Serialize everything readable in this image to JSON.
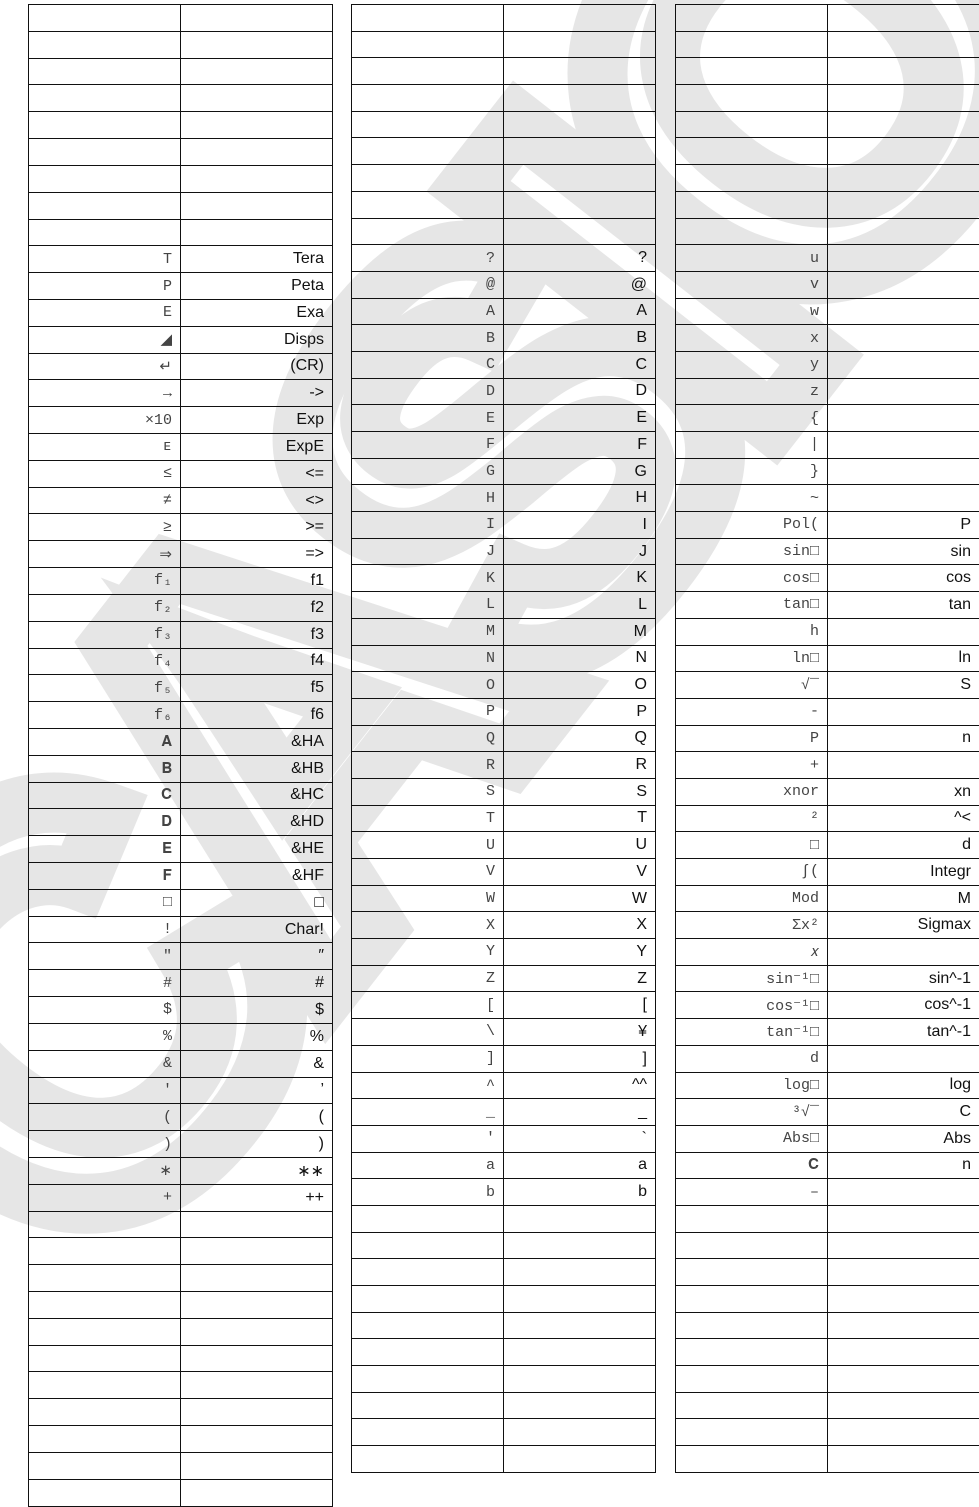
{
  "watermark": "CASIO",
  "tables": [
    {
      "total_rows": 56,
      "first_data_row": 9,
      "rows": [
        [
          "T",
          "Tera"
        ],
        [
          "P",
          "Peta"
        ],
        [
          "E",
          "Exa"
        ],
        [
          "◢",
          "Disps"
        ],
        [
          "↵",
          "(CR)"
        ],
        [
          "→",
          "->"
        ],
        [
          "×10",
          "Exp"
        ],
        [
          "ᴇ",
          "ExpE"
        ],
        [
          "≤",
          "<="
        ],
        [
          "≠",
          "<>"
        ],
        [
          "≥",
          ">="
        ],
        [
          "⇒",
          "=>"
        ],
        [
          "f₁",
          "f1"
        ],
        [
          "f₂",
          "f2"
        ],
        [
          "f₃",
          "f3"
        ],
        [
          "f₄",
          "f4"
        ],
        [
          "f₅",
          "f5"
        ],
        [
          "f₆",
          "f6"
        ],
        [
          "𝐀",
          "&HA"
        ],
        [
          "𝐁",
          "&HB"
        ],
        [
          "𝐂",
          "&HC"
        ],
        [
          "𝐃",
          "&HD"
        ],
        [
          "𝐄",
          "&HE"
        ],
        [
          "𝐅",
          "&HF"
        ],
        [
          "□",
          "□"
        ],
        [
          "!",
          "Char!"
        ],
        [
          "\"",
          "″"
        ],
        [
          "#",
          "#"
        ],
        [
          "$",
          "$"
        ],
        [
          "%",
          "%"
        ],
        [
          "&",
          "&"
        ],
        [
          "'",
          "’"
        ],
        [
          "(",
          "("
        ],
        [
          ")",
          ")"
        ],
        [
          "∗",
          "∗∗"
        ],
        [
          "+",
          "++"
        ]
      ]
    },
    {
      "total_rows": 55,
      "first_data_row": 9,
      "rows": [
        [
          "?",
          "?"
        ],
        [
          "@",
          "@"
        ],
        [
          "A",
          "A"
        ],
        [
          "B",
          "B"
        ],
        [
          "C",
          "C"
        ],
        [
          "D",
          "D"
        ],
        [
          "E",
          "E"
        ],
        [
          "F",
          "F"
        ],
        [
          "G",
          "G"
        ],
        [
          "H",
          "H"
        ],
        [
          "I",
          "I"
        ],
        [
          "J",
          "J"
        ],
        [
          "K",
          "K"
        ],
        [
          "L",
          "L"
        ],
        [
          "M",
          "M"
        ],
        [
          "N",
          "N"
        ],
        [
          "O",
          "O"
        ],
        [
          "P",
          "P"
        ],
        [
          "Q",
          "Q"
        ],
        [
          "R",
          "R"
        ],
        [
          "S",
          "S"
        ],
        [
          "T",
          "T"
        ],
        [
          "U",
          "U"
        ],
        [
          "V",
          "V"
        ],
        [
          "W",
          "W"
        ],
        [
          "X",
          "X"
        ],
        [
          "Y",
          "Y"
        ],
        [
          "Z",
          "Z"
        ],
        [
          "[",
          "["
        ],
        [
          "\\",
          "¥"
        ],
        [
          "]",
          "]"
        ],
        [
          "^",
          "^^"
        ],
        [
          "_",
          "_"
        ],
        [
          "'",
          "`"
        ],
        [
          "a",
          "a"
        ],
        [
          "b",
          "b"
        ]
      ]
    },
    {
      "total_rows": 55,
      "first_data_row": 9,
      "rows": [
        [
          "u",
          ""
        ],
        [
          "v",
          ""
        ],
        [
          "w",
          ""
        ],
        [
          "x",
          ""
        ],
        [
          "y",
          ""
        ],
        [
          "z",
          ""
        ],
        [
          "{",
          ""
        ],
        [
          "|",
          ""
        ],
        [
          "}",
          ""
        ],
        [
          "~",
          ""
        ],
        [
          "Pol(",
          "P"
        ],
        [
          "sin□",
          "sin"
        ],
        [
          "cos□",
          "cos"
        ],
        [
          "tan□",
          "tan"
        ],
        [
          "h",
          ""
        ],
        [
          "ln□",
          "ln"
        ],
        [
          "√‾",
          "S"
        ],
        [
          "-",
          ""
        ],
        [
          "P",
          "n"
        ],
        [
          "+",
          ""
        ],
        [
          "xnor",
          "xn"
        ],
        [
          "²",
          "^<"
        ],
        [
          "□",
          "d"
        ],
        [
          "∫(",
          "Integr"
        ],
        [
          "Mod",
          "M"
        ],
        [
          "Σx²",
          "Sigmax"
        ],
        [
          "𝑥",
          ""
        ],
        [
          "sin⁻¹□",
          "sin^-1"
        ],
        [
          "cos⁻¹□",
          "cos^-1"
        ],
        [
          "tan⁻¹□",
          "tan^-1"
        ],
        [
          "d",
          ""
        ],
        [
          "log□",
          "log"
        ],
        [
          "³√‾",
          "C"
        ],
        [
          "Abs□",
          "Abs"
        ],
        [
          "𝐂",
          "n"
        ],
        [
          "–",
          ""
        ]
      ]
    }
  ]
}
